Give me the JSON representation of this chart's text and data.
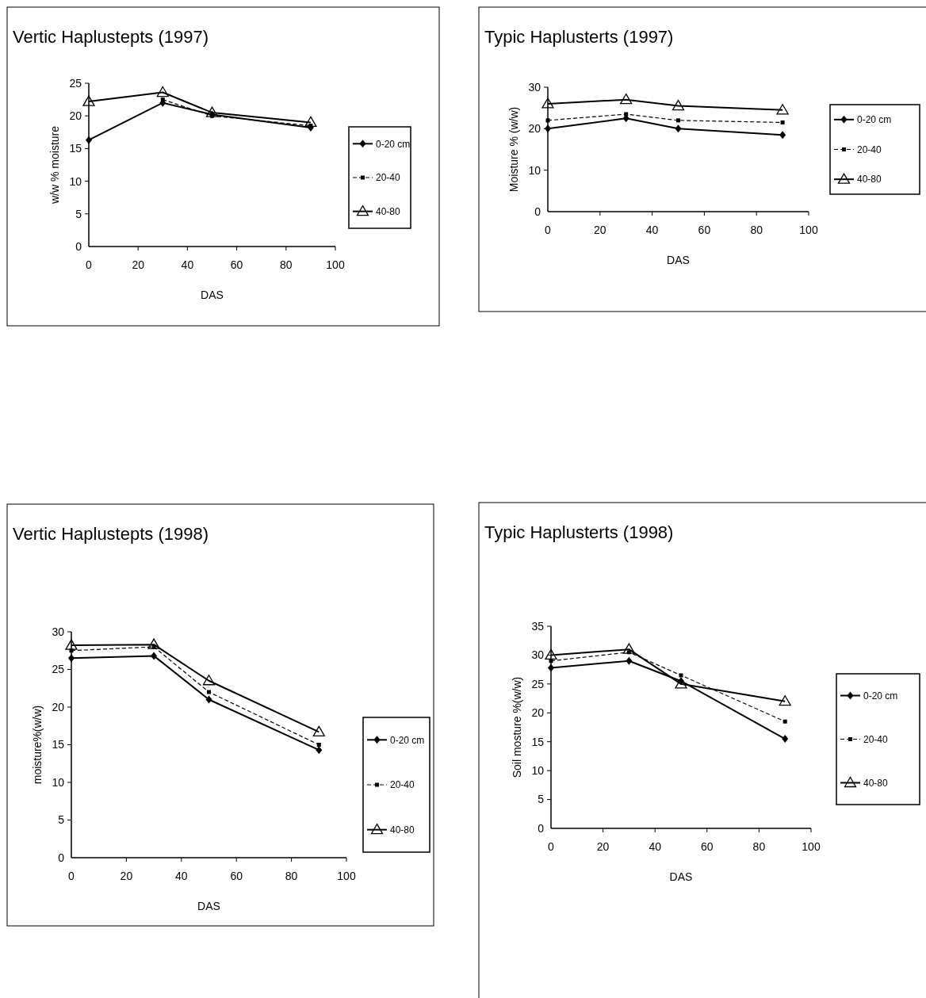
{
  "chart_data": [
    {
      "type": "line",
      "title": "Vertic Haplustepts (1997)",
      "xlabel": "DAS",
      "ylabel": "w/w % moisture",
      "x": [
        0,
        30,
        50,
        90
      ],
      "xlim": [
        0,
        100
      ],
      "xticks": [
        0,
        20,
        40,
        60,
        80,
        100
      ],
      "ylim": [
        0,
        25
      ],
      "yticks": [
        0,
        5,
        10,
        15,
        20,
        25
      ],
      "legend": "right",
      "grid": false,
      "series": [
        {
          "name": "0-20 cm",
          "color": "#000000",
          "marker": "diamond",
          "line_style": "solid",
          "values": [
            16.3,
            22,
            20.2,
            18.2
          ]
        },
        {
          "name": "20-40",
          "color": "#000000",
          "marker": "square",
          "line_style": "dashed",
          "values": [
            null,
            22.5,
            20,
            18.5
          ]
        },
        {
          "name": "40-80",
          "color": "#000000",
          "marker": "triangle",
          "line_style": "solid",
          "values": [
            22.2,
            23.6,
            20.5,
            19
          ]
        }
      ]
    },
    {
      "type": "line",
      "title": "Typic Haplusterts (1997)",
      "xlabel": "DAS",
      "ylabel": "Moisture % (w/w)",
      "x": [
        0,
        30,
        50,
        90
      ],
      "xlim": [
        0,
        100
      ],
      "xticks": [
        0,
        20,
        40,
        60,
        80,
        100
      ],
      "ylim": [
        0,
        30
      ],
      "yticks": [
        0,
        10,
        20,
        30
      ],
      "legend": "right",
      "grid": false,
      "series": [
        {
          "name": "0-20 cm",
          "color": "#000000",
          "marker": "diamond",
          "line_style": "solid",
          "values": [
            20,
            22.5,
            20,
            18.5
          ]
        },
        {
          "name": "20-40",
          "color": "#000000",
          "marker": "square",
          "line_style": "dashed",
          "values": [
            22,
            23.5,
            22,
            21.5
          ]
        },
        {
          "name": "40-80",
          "color": "#000000",
          "marker": "triangle",
          "line_style": "solid",
          "values": [
            26,
            27,
            25.5,
            24.5
          ]
        }
      ]
    },
    {
      "type": "line",
      "title": "Vertic Haplustepts (1998)",
      "xlabel": "DAS",
      "ylabel": "moisture%(w/w)",
      "x": [
        0,
        30,
        50,
        90
      ],
      "xlim": [
        0,
        100
      ],
      "xticks": [
        0,
        20,
        40,
        60,
        80,
        100
      ],
      "ylim": [
        0,
        30
      ],
      "yticks": [
        0,
        5,
        10,
        15,
        20,
        25,
        30
      ],
      "legend": "right",
      "grid": false,
      "series": [
        {
          "name": "0-20 cm",
          "color": "#000000",
          "marker": "diamond",
          "line_style": "solid",
          "values": [
            26.5,
            26.8,
            21,
            14.3
          ]
        },
        {
          "name": "20-40",
          "color": "#000000",
          "marker": "square",
          "line_style": "dashed",
          "values": [
            27.5,
            28,
            22,
            15
          ]
        },
        {
          "name": "40-80",
          "color": "#000000",
          "marker": "triangle",
          "line_style": "solid",
          "values": [
            28.2,
            28.3,
            23.5,
            16.7
          ]
        }
      ]
    },
    {
      "type": "line",
      "title": "Typic Haplusterts (1998)",
      "xlabel": "DAS",
      "ylabel": "Soil mosture %(w/w)",
      "x": [
        0,
        30,
        50,
        90
      ],
      "xlim": [
        0,
        100
      ],
      "xticks": [
        0,
        20,
        40,
        60,
        80,
        100
      ],
      "ylim": [
        0,
        35
      ],
      "yticks": [
        0,
        5,
        10,
        15,
        20,
        25,
        30,
        35
      ],
      "legend": "right",
      "grid": false,
      "series": [
        {
          "name": "0-20 cm",
          "color": "#000000",
          "marker": "diamond",
          "line_style": "solid",
          "values": [
            27.8,
            29,
            25.5,
            15.5
          ]
        },
        {
          "name": "20-40",
          "color": "#000000",
          "marker": "square",
          "line_style": "dashed",
          "values": [
            29,
            30.5,
            26.5,
            18.5
          ]
        },
        {
          "name": "40-80",
          "color": "#000000",
          "marker": "triangle",
          "line_style": "solid",
          "values": [
            30,
            31,
            25,
            22
          ]
        }
      ]
    }
  ]
}
